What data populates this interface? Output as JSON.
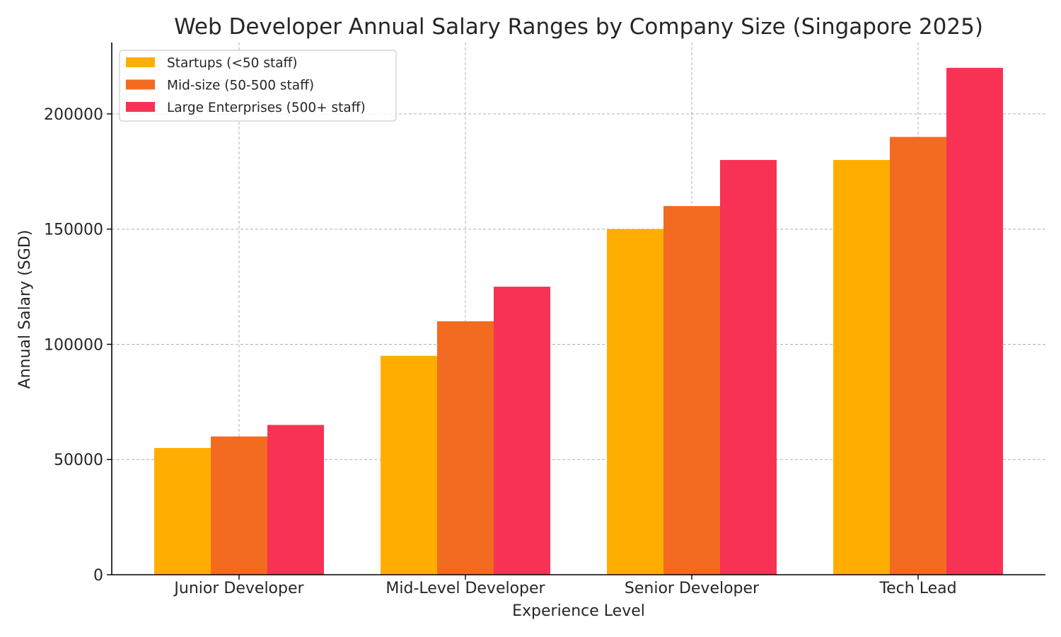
{
  "chart_data": {
    "type": "bar",
    "title": "Web Developer Annual Salary Ranges by Company Size (Singapore 2025)",
    "xlabel": "Experience Level",
    "ylabel": "Annual Salary (SGD)",
    "categories": [
      "Junior Developer",
      "Mid-Level Developer",
      "Senior Developer",
      "Tech Lead"
    ],
    "series": [
      {
        "name": "Startups (<50 staff)",
        "color": "#FFAE00",
        "values": [
          55000,
          95000,
          150000,
          180000
        ]
      },
      {
        "name": "Mid-size (50-500 staff)",
        "color": "#F26B21",
        "values": [
          60000,
          110000,
          160000,
          190000
        ]
      },
      {
        "name": "Large Enterprises (500+ staff)",
        "color": "#F73255",
        "values": [
          65000,
          125000,
          180000,
          220000
        ]
      }
    ],
    "ylim": [
      0,
      231000
    ],
    "yticks": [
      0,
      50000,
      100000,
      150000,
      200000
    ],
    "grid": true,
    "legend_position": "top-left"
  }
}
